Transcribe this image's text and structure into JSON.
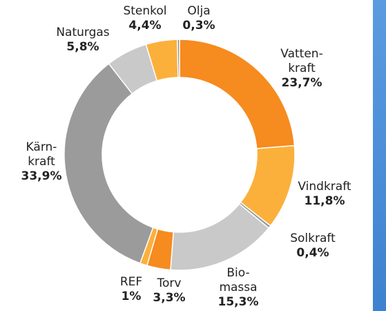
{
  "chart_data": {
    "type": "donut",
    "categories": [
      "Vatten-\nkraft",
      "Vindkraft",
      "Solkraft",
      "Bio-\nmassa",
      "Torv",
      "REF",
      "Kärn-\nkraft",
      "Naturgas",
      "Stenkol",
      "Olja"
    ],
    "values": [
      23.7,
      11.8,
      0.4,
      15.3,
      3.3,
      1,
      33.9,
      5.8,
      4.4,
      0.3
    ],
    "value_labels": [
      "23,7%",
      "11,8%",
      "0,4%",
      "15,3%",
      "3,3%",
      "1%",
      "33,9%",
      "5,8%",
      "4,4%",
      "0,3%"
    ],
    "colors": [
      "#f68b1f",
      "#fbb03b",
      "#9a9a9a",
      "#c9c9c9",
      "#f68b1f",
      "#fbb03b",
      "#9b9b9b",
      "#c9c9c9",
      "#fbb03b",
      "#8c8c8c"
    ]
  }
}
